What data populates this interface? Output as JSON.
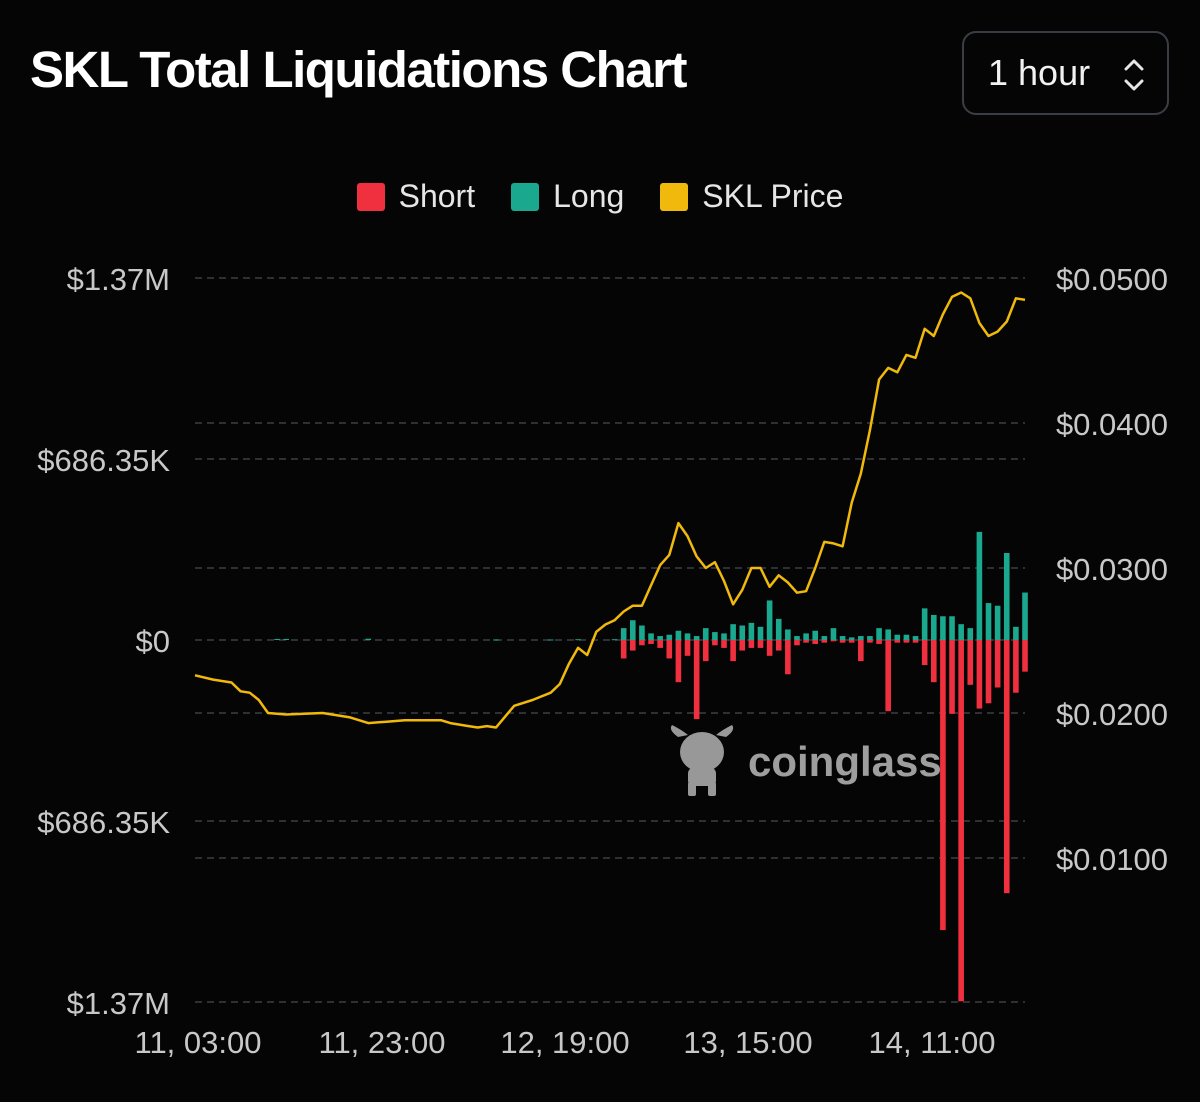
{
  "header": {
    "title": "SKL Total Liquidations Chart"
  },
  "interval_select": {
    "value": "1 hour",
    "icon": "chevron-updown-icon"
  },
  "legend": [
    {
      "label": "Short",
      "color": "#f0303e"
    },
    {
      "label": "Long",
      "color": "#1aa88f"
    },
    {
      "label": "SKL Price",
      "color": "#f0b90b"
    }
  ],
  "watermark": {
    "text": "coinglass",
    "icon": "coinglass-bull-icon"
  },
  "chart_data": {
    "type": "bar",
    "title": "SKL Total Liquidations Chart",
    "legend_position": "top-center",
    "grid": true,
    "x_ticks": [
      "11, 03:00",
      "11, 23:00",
      "12, 19:00",
      "13, 15:00",
      "14, 11:00"
    ],
    "x_range_hours": [
      0,
      91
    ],
    "left_axis": {
      "ticks": [
        {
          "value": 1372700,
          "label": "$1.37M"
        },
        {
          "value": 686350,
          "label": "$686.35K"
        },
        {
          "value": 0,
          "label": "$0"
        },
        {
          "value": -686350,
          "label": "$686.35K"
        },
        {
          "value": -1372700,
          "label": "$1.37M"
        }
      ],
      "ylim": [
        -1372700,
        1372700
      ]
    },
    "right_axis": {
      "ticks": [
        {
          "value": 0.05,
          "label": "$0.0500"
        },
        {
          "value": 0.04,
          "label": "$0.0400"
        },
        {
          "value": 0.03,
          "label": "$0.0300"
        },
        {
          "value": 0.02,
          "label": "$0.0200"
        },
        {
          "value": 0.01,
          "label": "$0.0100"
        }
      ],
      "ylim": [
        0.0,
        0.05
      ]
    },
    "series": [
      {
        "name": "Long",
        "type": "bar",
        "axis": "left",
        "points": [
          [
            9,
            4000
          ],
          [
            10,
            4000
          ],
          [
            19,
            5000
          ],
          [
            33,
            2000
          ],
          [
            39,
            2000
          ],
          [
            42,
            3000
          ],
          [
            46,
            3000
          ],
          [
            47,
            45000
          ],
          [
            48,
            75000
          ],
          [
            49,
            55000
          ],
          [
            50,
            25000
          ],
          [
            51,
            15000
          ],
          [
            52,
            20000
          ],
          [
            53,
            35000
          ],
          [
            54,
            25000
          ],
          [
            55,
            15000
          ],
          [
            56,
            45000
          ],
          [
            57,
            30000
          ],
          [
            58,
            25000
          ],
          [
            59,
            60000
          ],
          [
            60,
            55000
          ],
          [
            61,
            65000
          ],
          [
            62,
            50000
          ],
          [
            63,
            150000
          ],
          [
            64,
            80000
          ],
          [
            65,
            40000
          ],
          [
            66,
            15000
          ],
          [
            67,
            25000
          ],
          [
            68,
            35000
          ],
          [
            69,
            15000
          ],
          [
            70,
            45000
          ],
          [
            71,
            15000
          ],
          [
            72,
            10000
          ],
          [
            73,
            15000
          ],
          [
            74,
            15000
          ],
          [
            75,
            45000
          ],
          [
            76,
            40000
          ],
          [
            77,
            20000
          ],
          [
            78,
            20000
          ],
          [
            79,
            15000
          ],
          [
            80,
            120000
          ],
          [
            81,
            95000
          ],
          [
            82,
            90000
          ],
          [
            83,
            90000
          ],
          [
            84,
            60000
          ],
          [
            85,
            45000
          ],
          [
            86,
            410000
          ],
          [
            87,
            140000
          ],
          [
            88,
            130000
          ],
          [
            89,
            330000
          ],
          [
            90,
            50000
          ],
          [
            91,
            180000
          ]
        ]
      },
      {
        "name": "Short",
        "type": "bar",
        "axis": "right",
        "points": [
          [
            47,
            70000
          ],
          [
            48,
            40000
          ],
          [
            49,
            20000
          ],
          [
            50,
            15000
          ],
          [
            51,
            30000
          ],
          [
            52,
            70000
          ],
          [
            53,
            160000
          ],
          [
            54,
            60000
          ],
          [
            55,
            300000
          ],
          [
            56,
            80000
          ],
          [
            57,
            20000
          ],
          [
            58,
            30000
          ],
          [
            59,
            80000
          ],
          [
            60,
            40000
          ],
          [
            61,
            30000
          ],
          [
            62,
            30000
          ],
          [
            63,
            60000
          ],
          [
            64,
            40000
          ],
          [
            65,
            130000
          ],
          [
            66,
            20000
          ],
          [
            67,
            10000
          ],
          [
            68,
            15000
          ],
          [
            69,
            10000
          ],
          [
            70,
            5000
          ],
          [
            71,
            10000
          ],
          [
            72,
            10000
          ],
          [
            73,
            80000
          ],
          [
            74,
            10000
          ],
          [
            75,
            15000
          ],
          [
            76,
            270000
          ],
          [
            77,
            10000
          ],
          [
            78,
            10000
          ],
          [
            79,
            10000
          ],
          [
            80,
            95000
          ],
          [
            81,
            160000
          ],
          [
            82,
            1100000
          ],
          [
            83,
            280000
          ],
          [
            84,
            1370000
          ],
          [
            85,
            170000
          ],
          [
            86,
            260000
          ],
          [
            87,
            240000
          ],
          [
            88,
            180000
          ],
          [
            89,
            960000
          ],
          [
            90,
            200000
          ],
          [
            91,
            120000
          ]
        ]
      },
      {
        "name": "SKL Price",
        "type": "line",
        "axis": "right",
        "points": [
          [
            0,
            0.0226
          ],
          [
            2,
            0.0223
          ],
          [
            4,
            0.0221
          ],
          [
            5,
            0.0215
          ],
          [
            6,
            0.0214
          ],
          [
            7,
            0.0209
          ],
          [
            8,
            0.02
          ],
          [
            10,
            0.0199
          ],
          [
            14,
            0.02
          ],
          [
            17,
            0.0197
          ],
          [
            19,
            0.0193
          ],
          [
            21,
            0.0194
          ],
          [
            23,
            0.0195
          ],
          [
            25,
            0.0195
          ],
          [
            27,
            0.0195
          ],
          [
            28,
            0.0193
          ],
          [
            30,
            0.0191
          ],
          [
            31,
            0.019
          ],
          [
            32,
            0.0191
          ],
          [
            33,
            0.019
          ],
          [
            35,
            0.0205
          ],
          [
            37,
            0.0209
          ],
          [
            39,
            0.0214
          ],
          [
            40,
            0.022
          ],
          [
            41,
            0.0234
          ],
          [
            42,
            0.0245
          ],
          [
            43,
            0.024
          ],
          [
            44,
            0.0256
          ],
          [
            45,
            0.0261
          ],
          [
            46,
            0.0264
          ],
          [
            47,
            0.027
          ],
          [
            48,
            0.0274
          ],
          [
            49,
            0.0274
          ],
          [
            50,
            0.0288
          ],
          [
            51,
            0.0302
          ],
          [
            52,
            0.0309
          ],
          [
            53,
            0.0331
          ],
          [
            54,
            0.0322
          ],
          [
            55,
            0.0308
          ],
          [
            56,
            0.03
          ],
          [
            57,
            0.0304
          ],
          [
            58,
            0.0291
          ],
          [
            59,
            0.0275
          ],
          [
            60,
            0.0285
          ],
          [
            61,
            0.03
          ],
          [
            62,
            0.03
          ],
          [
            63,
            0.0287
          ],
          [
            64,
            0.0295
          ],
          [
            65,
            0.029
          ],
          [
            66,
            0.0283
          ],
          [
            67,
            0.0284
          ],
          [
            68,
            0.03
          ],
          [
            69,
            0.0318
          ],
          [
            70,
            0.0317
          ],
          [
            71,
            0.0315
          ],
          [
            72,
            0.0345
          ],
          [
            73,
            0.0365
          ],
          [
            74,
            0.0395
          ],
          [
            75,
            0.043
          ],
          [
            76,
            0.0438
          ],
          [
            77,
            0.0435
          ],
          [
            78,
            0.0447
          ],
          [
            79,
            0.0445
          ],
          [
            80,
            0.0465
          ],
          [
            81,
            0.046
          ],
          [
            82,
            0.0475
          ],
          [
            83,
            0.0487
          ],
          [
            84,
            0.049
          ],
          [
            85,
            0.0486
          ],
          [
            86,
            0.0469
          ],
          [
            87,
            0.046
          ],
          [
            88,
            0.0463
          ],
          [
            89,
            0.047
          ],
          [
            90,
            0.0486
          ],
          [
            91,
            0.0485
          ]
        ]
      }
    ]
  }
}
